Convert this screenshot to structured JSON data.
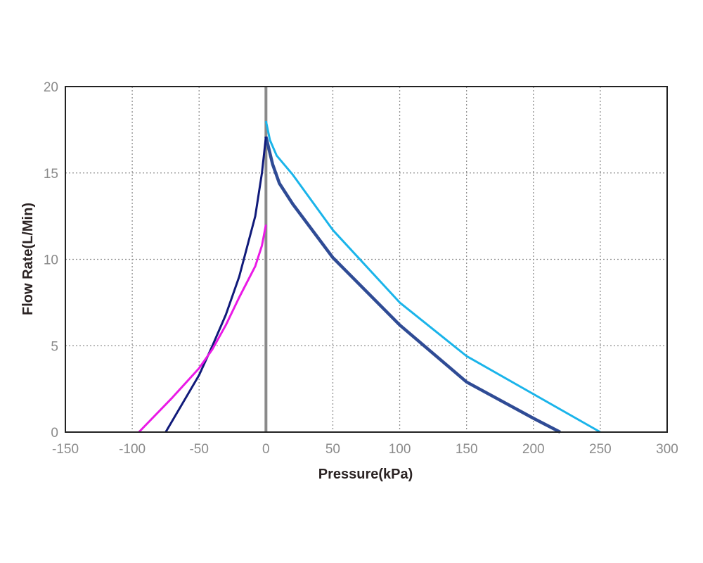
{
  "chart_data": {
    "type": "line",
    "xlabel": "Pressure(kPa)",
    "ylabel": "Flow Rate(L/Min)",
    "xlim": [
      -150,
      300
    ],
    "ylim": [
      0,
      20
    ],
    "x_ticks": [
      "-150",
      "-100",
      "-50",
      "0",
      "50",
      "100",
      "150",
      "200",
      "250",
      "300"
    ],
    "y_ticks": [
      "0",
      "5",
      "10",
      "15",
      "20"
    ],
    "grid": true,
    "grid_style": "dotted",
    "legend": "none",
    "zero_line": {
      "x": 0,
      "color": "#8a8a8a"
    },
    "series": [
      {
        "color": "#1ab4ea",
        "points": [
          [
            0,
            18.0
          ],
          [
            3,
            16.9
          ],
          [
            8,
            16.0
          ],
          [
            20,
            14.9
          ],
          [
            50,
            11.7
          ],
          [
            100,
            7.5
          ],
          [
            150,
            4.4
          ],
          [
            200,
            2.2
          ],
          [
            250,
            0
          ]
        ]
      },
      {
        "color": "#2f4b95",
        "points": [
          [
            0,
            17.1
          ],
          [
            5,
            15.5
          ],
          [
            10,
            14.4
          ],
          [
            20,
            13.2
          ],
          [
            50,
            10.1
          ],
          [
            100,
            6.2
          ],
          [
            150,
            2.9
          ],
          [
            200,
            0.8
          ],
          [
            220,
            0
          ]
        ]
      },
      {
        "color": "#101a7a",
        "points": [
          [
            -75,
            0
          ],
          [
            -50,
            3.3
          ],
          [
            -40,
            5.0
          ],
          [
            -30,
            6.8
          ],
          [
            -20,
            9.0
          ],
          [
            -8,
            12.5
          ],
          [
            -3,
            15.0
          ],
          [
            0,
            17.1
          ]
        ]
      },
      {
        "color": "#ea1ae6",
        "points": [
          [
            -95,
            0
          ],
          [
            -70,
            2.0
          ],
          [
            -50,
            3.7
          ],
          [
            -40,
            4.8
          ],
          [
            -30,
            6.2
          ],
          [
            -20,
            7.8
          ],
          [
            -8,
            9.6
          ],
          [
            -3,
            10.8
          ],
          [
            0,
            12.0
          ]
        ]
      }
    ]
  }
}
